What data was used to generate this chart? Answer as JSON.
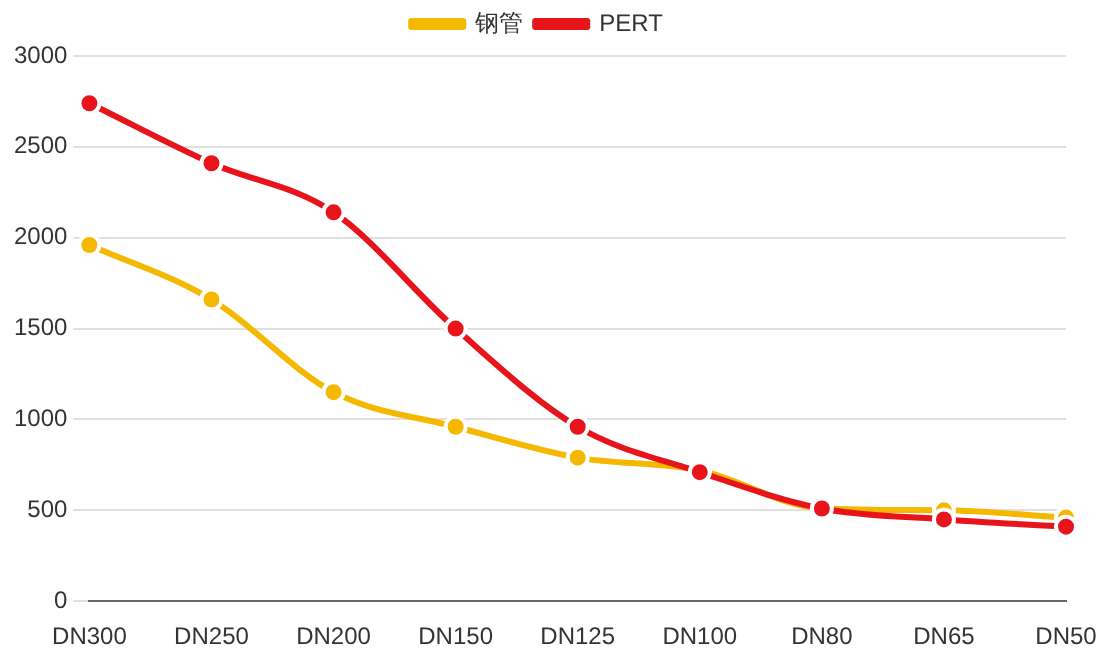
{
  "chart_data": {
    "type": "line",
    "categories": [
      "DN300",
      "DN250",
      "DN200",
      "DN150",
      "DN125",
      "DN100",
      "DN80",
      "DN65",
      "DN50"
    ],
    "series": [
      {
        "name": "钢管",
        "color": "#f5b800",
        "values": [
          1960,
          1660,
          1150,
          960,
          790,
          720,
          510,
          500,
          460
        ]
      },
      {
        "name": "PERT",
        "color": "#e8141b",
        "values": [
          2740,
          2410,
          2140,
          1500,
          960,
          710,
          510,
          450,
          410
        ]
      }
    ],
    "ylim": [
      0,
      3000
    ],
    "yticks": [
      0,
      500,
      1000,
      1500,
      2000,
      2500,
      3000
    ],
    "grid": "y",
    "legend": "top",
    "marker": "circle",
    "line_style": "solid"
  }
}
